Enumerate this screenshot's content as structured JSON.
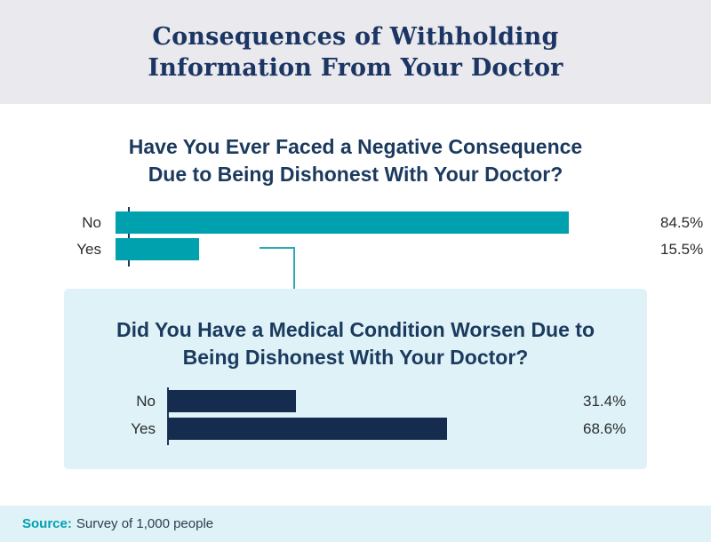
{
  "header": {
    "title_line1": "Consequences of Withholding",
    "title_line2": "Information From Your Doctor"
  },
  "chart_data": [
    {
      "type": "bar",
      "orientation": "horizontal",
      "title": "Have You Ever Faced a Negative Consequence Due to Being Dishonest With Your Doctor?",
      "title_line1": "Have You Ever Faced a Negative Consequence",
      "title_line2": "Due to Being Dishonest With Your Doctor?",
      "categories": [
        "No",
        "Yes"
      ],
      "values": [
        84.5,
        15.5
      ],
      "value_labels": [
        "84.5%",
        "15.5%"
      ],
      "bar_color": "#00a1ae",
      "xlim": [
        0,
        100
      ],
      "grid": false,
      "value_label_position": "end-of-bar"
    },
    {
      "type": "bar",
      "orientation": "horizontal",
      "title": "Did You Have a Medical Condition Worsen Due to Being Dishonest With Your Doctor?",
      "title_line1": "Did You Have a Medical Condition Worsen Due to",
      "title_line2": "Being Dishonest With Your Doctor?",
      "categories": [
        "No",
        "Yes"
      ],
      "values": [
        31.4,
        68.6
      ],
      "value_labels": [
        "31.4%",
        "68.6%"
      ],
      "bar_color": "#152c4e",
      "xlim": [
        0,
        100
      ],
      "grid": false,
      "value_label_position": "end-of-bar"
    }
  ],
  "footer": {
    "source_label": "Source:",
    "source_text": "Survey of 1,000 people"
  },
  "colors": {
    "header_bg": "#e9e9ee",
    "title_navy": "#1c3663",
    "heading_navy": "#1b3a5e",
    "teal_bar": "#00a1ae",
    "navy_bar": "#152c4e",
    "sub_box_bg": "#def2f8",
    "footer_bg": "#dff2f7",
    "connector": "#2fa8ba"
  }
}
